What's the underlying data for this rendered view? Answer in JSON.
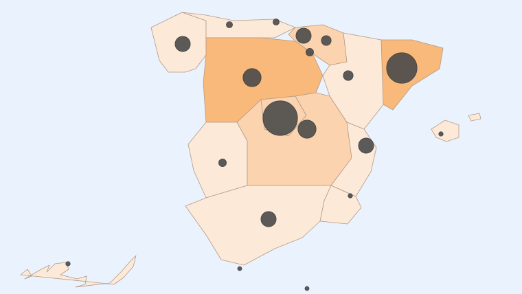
{
  "map": {
    "background_color": "#eaf2fd",
    "shade_colors": {
      "low": "#fde9d8",
      "mid": "#fbd3ae",
      "high": "#f8b97a"
    },
    "bubble_color": "#4a4a4a",
    "regions": [
      {
        "shade": "low"
      },
      {
        "shade": "low"
      },
      {
        "shade": "mid"
      },
      {
        "shade": "high"
      },
      {
        "shade": "low"
      },
      {
        "shade": "high"
      },
      {
        "shade": "mid"
      },
      {
        "shade": "low"
      },
      {
        "shade": "mid"
      },
      {
        "shade": "low"
      },
      {
        "shade": "low"
      },
      {
        "shade": "low"
      },
      {
        "shade": "low"
      },
      {
        "shade": "low"
      },
      {
        "shade": "low"
      }
    ],
    "bubble_values": [
      12,
      2,
      2,
      12,
      5,
      3,
      17,
      62,
      17,
      5,
      48,
      12,
      1,
      3,
      1,
      12,
      1,
      0.5,
      0.5
    ]
  }
}
